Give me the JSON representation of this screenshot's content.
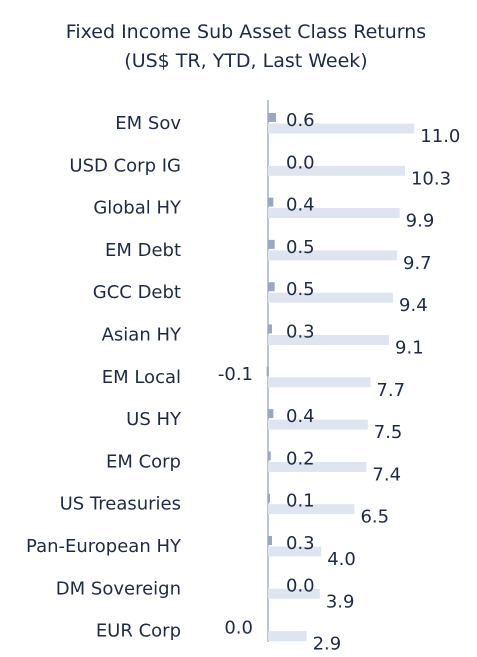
{
  "chart_data": {
    "type": "bar",
    "orientation": "horizontal",
    "title": [
      "Fixed Income Sub Asset Class Returns",
      "(US$ TR, YTD, Last Week)"
    ],
    "categories": [
      "EM Sov",
      "USD Corp IG",
      "Global HY",
      "EM Debt",
      "GCC Debt",
      "Asian HY",
      "EM Local",
      "US HY",
      "EM Corp",
      "US Treasuries",
      "Pan-European HY",
      "DM Sovereign",
      "EUR Corp"
    ],
    "series": [
      {
        "name": "YTD",
        "color": "#dfe4f1",
        "values": [
          11.0,
          10.3,
          9.9,
          9.7,
          9.4,
          9.1,
          7.7,
          7.5,
          7.4,
          6.5,
          4.0,
          3.9,
          2.9
        ]
      },
      {
        "name": "Last Week",
        "color": "#9aa6c6",
        "values": [
          0.6,
          0.0,
          0.4,
          0.5,
          0.5,
          0.3,
          -0.1,
          0.4,
          0.2,
          0.1,
          0.3,
          0.0,
          0.0
        ]
      }
    ],
    "axis_color": "#b9c3dc",
    "text_color": "#1f2a44"
  }
}
